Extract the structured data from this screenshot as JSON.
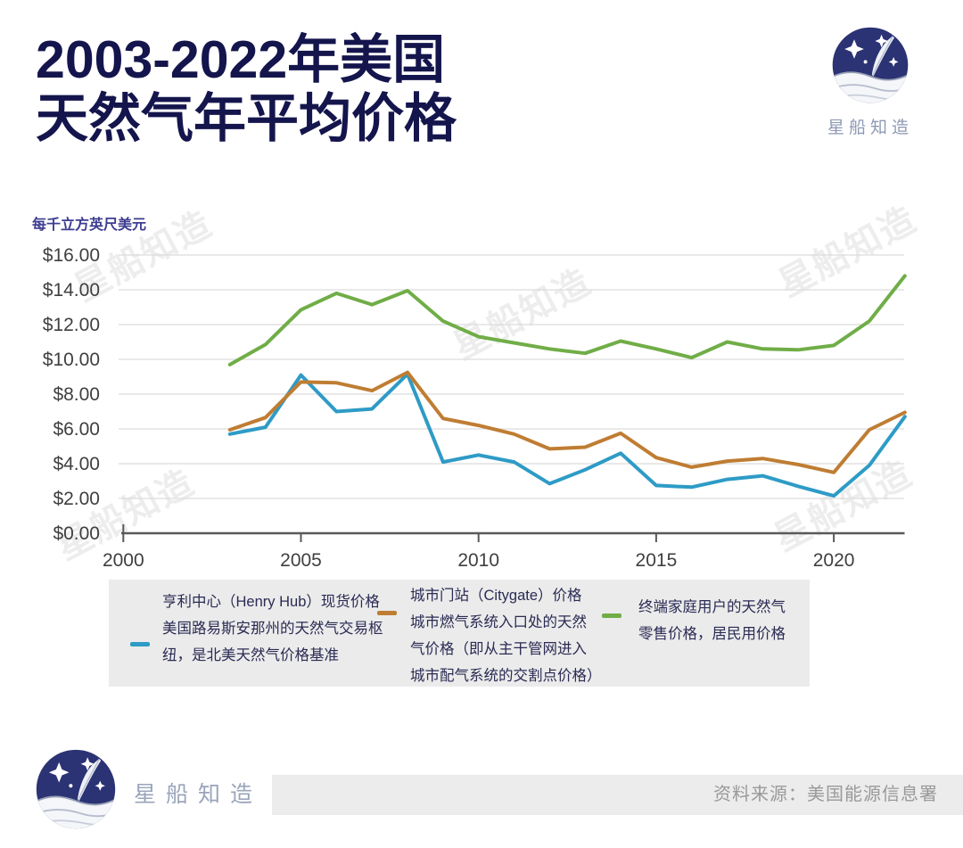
{
  "header": {
    "title_line1": "2003-2022年美国",
    "title_line2": "天然气年平均价格",
    "brand_name": "星船知造"
  },
  "watermark_text": "星船知造",
  "chart_data": {
    "type": "line",
    "unit_label": "每千立方英尺美元",
    "x": [
      2003,
      2004,
      2005,
      2006,
      2007,
      2008,
      2009,
      2010,
      2011,
      2012,
      2013,
      2014,
      2015,
      2016,
      2017,
      2018,
      2019,
      2020,
      2021,
      2022
    ],
    "series": [
      {
        "name": "亨利中心（Henry Hub）现货价格",
        "color": "#2e9bc6",
        "values": [
          5.7,
          6.1,
          9.1,
          7.0,
          7.15,
          9.15,
          4.1,
          4.5,
          4.1,
          2.85,
          3.65,
          4.6,
          2.75,
          2.65,
          3.1,
          3.3,
          2.7,
          2.15,
          3.9,
          6.7
        ]
      },
      {
        "name": "城市门站（Citygate）价格",
        "color": "#bf7d33",
        "values": [
          5.95,
          6.65,
          8.7,
          8.65,
          8.2,
          9.25,
          6.6,
          6.2,
          5.7,
          4.85,
          4.95,
          5.75,
          4.35,
          3.8,
          4.15,
          4.3,
          3.95,
          3.5,
          5.95,
          6.95
        ]
      },
      {
        "name": "终端家庭用户的天然气零售价格，居民用价格",
        "color": "#70ad47",
        "values": [
          9.7,
          10.85,
          12.85,
          13.8,
          13.15,
          13.95,
          12.2,
          11.3,
          10.95,
          10.6,
          10.35,
          11.05,
          10.6,
          10.1,
          11.0,
          10.6,
          10.55,
          10.8,
          12.2,
          14.8
        ]
      }
    ],
    "ylim": [
      0,
      16
    ],
    "ytick_step": 2,
    "ytick_labels": [
      "$0.00",
      "$2.00",
      "$4.00",
      "$6.00",
      "$8.00",
      "$10.00",
      "$12.00",
      "$14.00",
      "$16.00"
    ],
    "xticks": [
      2000,
      2005,
      2010,
      2015,
      2020
    ],
    "xlim": [
      2000,
      2022
    ],
    "grid": true,
    "legend_position": "bottom"
  },
  "legend": {
    "items": [
      {
        "color": "#2e9bc6",
        "lines": [
          "亨利中心（Henry Hub）现货价格",
          "美国路易斯安那州的天然气交易枢",
          "纽，是北美天然气价格基准"
        ]
      },
      {
        "color": "#bf7d33",
        "lines": [
          "城市门站（Citygate）价格",
          "城市燃气系统入口处的天然",
          "气价格（即从主干管网进入",
          "城市配气系统的交割点价格）"
        ]
      },
      {
        "color": "#70ad47",
        "lines": [
          "终端家庭用户的天然气",
          "零售价格，居民用价格"
        ]
      }
    ]
  },
  "footer": {
    "brand_name": "星船知造",
    "source": "资料来源：美国能源信息署"
  },
  "colors": {
    "title_navy": "#15154d",
    "logo_navy": "#2b3374",
    "grid": "#dcdcdc",
    "axis": "#595959",
    "axis_text": "#3f3f3f",
    "unit_label": "#3d3d91",
    "legend_bg": "#ebebeb",
    "legend_text": "#2b2b55"
  }
}
